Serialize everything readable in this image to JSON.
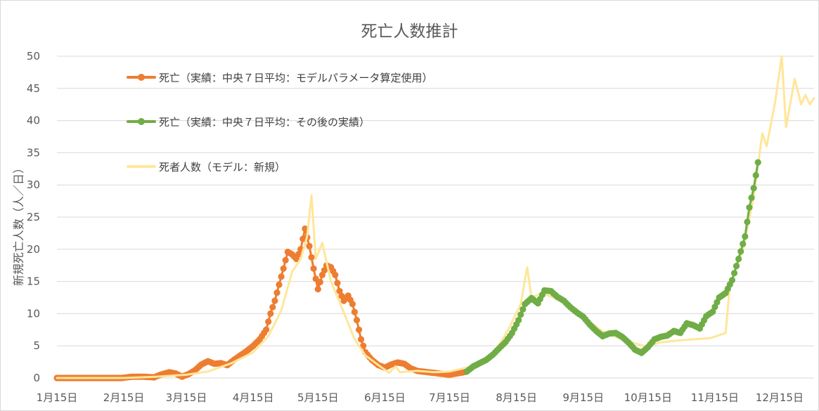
{
  "chart_data": {
    "type": "line",
    "title": "死亡人数推計",
    "xlabel": "",
    "ylabel": "新規死亡人数（人／日）",
    "ylim": [
      0,
      50
    ],
    "y_ticks": [
      0,
      5,
      10,
      15,
      20,
      25,
      30,
      35,
      40,
      45,
      50
    ],
    "x_tick_labels": [
      "1月15日",
      "2月15日",
      "3月15日",
      "4月15日",
      "5月15日",
      "6月15日",
      "7月15日",
      "8月15日",
      "9月15日",
      "10月15日",
      "11月15日",
      "12月15日"
    ],
    "x_tick_dates": [
      "2020-01-15",
      "2020-02-15",
      "2020-03-15",
      "2020-04-15",
      "2020-05-15",
      "2020-06-15",
      "2020-07-15",
      "2020-08-15",
      "2020-09-15",
      "2020-10-15",
      "2020-11-15",
      "2020-12-15"
    ],
    "xlim": [
      "2020-01-15",
      "2020-12-31"
    ],
    "grid": "horizontal",
    "legend_position": "top-left",
    "series": [
      {
        "name": "死亡（実績：中央７日平均：モデルパラメータ算定使用）",
        "color": "#ED7D31",
        "style": "line-markers",
        "points": [
          [
            "2020-01-15",
            0
          ],
          [
            "2020-01-20",
            0
          ],
          [
            "2020-01-25",
            0
          ],
          [
            "2020-01-30",
            0
          ],
          [
            "2020-02-04",
            0
          ],
          [
            "2020-02-09",
            0
          ],
          [
            "2020-02-14",
            0
          ],
          [
            "2020-02-19",
            0.2
          ],
          [
            "2020-02-24",
            0.2
          ],
          [
            "2020-02-29",
            0.1
          ],
          [
            "2020-03-03",
            0.5
          ],
          [
            "2020-03-07",
            0.9
          ],
          [
            "2020-03-10",
            0.7
          ],
          [
            "2020-03-13",
            0.2
          ],
          [
            "2020-03-16",
            0.6
          ],
          [
            "2020-03-19",
            1.2
          ],
          [
            "2020-03-22",
            2.1
          ],
          [
            "2020-03-25",
            2.6
          ],
          [
            "2020-03-28",
            2.2
          ],
          [
            "2020-03-31",
            2.3
          ],
          [
            "2020-04-03",
            2.0
          ],
          [
            "2020-04-06",
            2.8
          ],
          [
            "2020-04-09",
            3.5
          ],
          [
            "2020-04-12",
            4.2
          ],
          [
            "2020-04-15",
            5.0
          ],
          [
            "2020-04-18",
            6.0
          ],
          [
            "2020-04-21",
            7.5
          ],
          [
            "2020-04-23",
            10.0
          ],
          [
            "2020-04-25",
            12.0
          ],
          [
            "2020-04-27",
            14.5
          ],
          [
            "2020-04-29",
            17.0
          ],
          [
            "2020-05-01",
            19.6
          ],
          [
            "2020-05-03",
            19.2
          ],
          [
            "2020-05-05",
            18.5
          ],
          [
            "2020-05-07",
            20.0
          ],
          [
            "2020-05-09",
            23.2
          ],
          [
            "2020-05-11",
            20.5
          ],
          [
            "2020-05-13",
            17.0
          ],
          [
            "2020-05-15",
            13.8
          ],
          [
            "2020-05-17",
            16.0
          ],
          [
            "2020-05-19",
            17.5
          ],
          [
            "2020-05-21",
            17.2
          ],
          [
            "2020-05-23",
            16.0
          ],
          [
            "2020-05-25",
            13.5
          ],
          [
            "2020-05-27",
            12.0
          ],
          [
            "2020-05-29",
            12.8
          ],
          [
            "2020-05-31",
            11.5
          ],
          [
            "2020-06-02",
            9.0
          ],
          [
            "2020-06-04",
            6.0
          ],
          [
            "2020-06-06",
            4.0
          ],
          [
            "2020-06-09",
            2.8
          ],
          [
            "2020-06-12",
            2.0
          ],
          [
            "2020-06-15",
            1.6
          ],
          [
            "2020-06-18",
            2.1
          ],
          [
            "2020-06-21",
            2.4
          ],
          [
            "2020-06-24",
            2.2
          ],
          [
            "2020-06-27",
            1.5
          ],
          [
            "2020-06-30",
            1.1
          ],
          [
            "2020-07-05",
            0.9
          ],
          [
            "2020-07-10",
            0.7
          ],
          [
            "2020-07-15",
            0.5
          ],
          [
            "2020-07-20",
            0.8
          ],
          [
            "2020-07-23",
            1.0
          ]
        ]
      },
      {
        "name": "死亡（実績：中央７日平均：その後の実績）",
        "color": "#70AD47",
        "style": "line-markers",
        "points": [
          [
            "2020-07-23",
            1.0
          ],
          [
            "2020-07-26",
            1.8
          ],
          [
            "2020-07-29",
            2.3
          ],
          [
            "2020-08-01",
            2.8
          ],
          [
            "2020-08-04",
            3.6
          ],
          [
            "2020-08-07",
            4.6
          ],
          [
            "2020-08-10",
            5.6
          ],
          [
            "2020-08-13",
            7.0
          ],
          [
            "2020-08-16",
            9.0
          ],
          [
            "2020-08-19",
            11.5
          ],
          [
            "2020-08-22",
            12.4
          ],
          [
            "2020-08-25",
            11.6
          ],
          [
            "2020-08-28",
            13.6
          ],
          [
            "2020-08-31",
            13.5
          ],
          [
            "2020-09-03",
            12.6
          ],
          [
            "2020-09-06",
            12.0
          ],
          [
            "2020-09-09",
            11.0
          ],
          [
            "2020-09-12",
            10.2
          ],
          [
            "2020-09-15",
            9.5
          ],
          [
            "2020-09-18",
            8.3
          ],
          [
            "2020-09-21",
            7.3
          ],
          [
            "2020-09-24",
            6.5
          ],
          [
            "2020-09-27",
            6.9
          ],
          [
            "2020-09-30",
            7.0
          ],
          [
            "2020-10-03",
            6.4
          ],
          [
            "2020-10-06",
            5.5
          ],
          [
            "2020-10-09",
            4.4
          ],
          [
            "2020-10-12",
            3.9
          ],
          [
            "2020-10-15",
            4.8
          ],
          [
            "2020-10-18",
            6.0
          ],
          [
            "2020-10-21",
            6.4
          ],
          [
            "2020-10-24",
            6.6
          ],
          [
            "2020-10-27",
            7.3
          ],
          [
            "2020-10-30",
            7.0
          ],
          [
            "2020-11-02",
            8.5
          ],
          [
            "2020-11-05",
            8.2
          ],
          [
            "2020-11-08",
            7.7
          ],
          [
            "2020-11-11",
            9.6
          ],
          [
            "2020-11-14",
            10.3
          ],
          [
            "2020-11-17",
            12.5
          ],
          [
            "2020-11-20",
            13.2
          ],
          [
            "2020-11-23",
            15.2
          ],
          [
            "2020-11-26",
            18.5
          ],
          [
            "2020-11-29",
            22.0
          ],
          [
            "2020-12-01",
            26.5
          ],
          [
            "2020-12-03",
            29.5
          ],
          [
            "2020-12-05",
            33.5
          ]
        ]
      },
      {
        "name": "死者人数（モデル：新規）",
        "color": "#FFE699",
        "style": "line",
        "points": [
          [
            "2020-01-15",
            0
          ],
          [
            "2020-02-15",
            0
          ],
          [
            "2020-03-01",
            0.2
          ],
          [
            "2020-03-15",
            0.5
          ],
          [
            "2020-03-25",
            1.0
          ],
          [
            "2020-04-05",
            2.3
          ],
          [
            "2020-04-15",
            4.0
          ],
          [
            "2020-04-22",
            6.5
          ],
          [
            "2020-04-28",
            10.5
          ],
          [
            "2020-05-03",
            16.5
          ],
          [
            "2020-05-05",
            17.5
          ],
          [
            "2020-05-07",
            18.5
          ],
          [
            "2020-05-10",
            22.0
          ],
          [
            "2020-05-12",
            28.4
          ],
          [
            "2020-05-14",
            18.5
          ],
          [
            "2020-05-17",
            21.0
          ],
          [
            "2020-05-21",
            15.0
          ],
          [
            "2020-05-26",
            11.0
          ],
          [
            "2020-06-01",
            6.0
          ],
          [
            "2020-06-06",
            3.5
          ],
          [
            "2020-06-12",
            2.0
          ],
          [
            "2020-06-17",
            0.8
          ],
          [
            "2020-06-20",
            1.8
          ],
          [
            "2020-06-22",
            0.9
          ],
          [
            "2020-06-30",
            1.1
          ],
          [
            "2020-07-08",
            0.9
          ],
          [
            "2020-07-15",
            1.0
          ],
          [
            "2020-07-28",
            2.0
          ],
          [
            "2020-08-05",
            4.0
          ],
          [
            "2020-08-12",
            8.0
          ],
          [
            "2020-08-17",
            11.5
          ],
          [
            "2020-08-20",
            17.2
          ],
          [
            "2020-08-22",
            12.5
          ],
          [
            "2020-08-27",
            13.2
          ],
          [
            "2020-09-06",
            11.8
          ],
          [
            "2020-09-15",
            9.5
          ],
          [
            "2020-09-24",
            7.2
          ],
          [
            "2020-10-03",
            6.0
          ],
          [
            "2020-10-11",
            5.2
          ],
          [
            "2020-10-15",
            4.8
          ],
          [
            "2020-10-20",
            5.5
          ],
          [
            "2020-10-28",
            5.8
          ],
          [
            "2020-11-05",
            6.0
          ],
          [
            "2020-11-13",
            6.2
          ],
          [
            "2020-11-20",
            7.0
          ],
          [
            "2020-11-22",
            14.5
          ],
          [
            "2020-11-28",
            20.0
          ],
          [
            "2020-12-03",
            28.0
          ],
          [
            "2020-12-05",
            33.0
          ],
          [
            "2020-12-07",
            38.0
          ],
          [
            "2020-12-09",
            36.0
          ],
          [
            "2020-12-13",
            43.0
          ],
          [
            "2020-12-16",
            50.0
          ],
          [
            "2020-12-18",
            39.0
          ],
          [
            "2020-12-22",
            46.5
          ],
          [
            "2020-12-25",
            42.5
          ],
          [
            "2020-12-27",
            44.0
          ],
          [
            "2020-12-29",
            42.5
          ],
          [
            "2020-12-31",
            43.5
          ]
        ]
      }
    ]
  }
}
